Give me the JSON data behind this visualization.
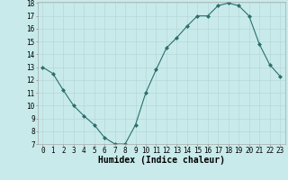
{
  "x": [
    0,
    1,
    2,
    3,
    4,
    5,
    6,
    7,
    8,
    9,
    10,
    11,
    12,
    13,
    14,
    15,
    16,
    17,
    18,
    19,
    20,
    21,
    22,
    23
  ],
  "y": [
    13,
    12.5,
    11.2,
    10,
    9.2,
    8.5,
    7.5,
    7.0,
    7.0,
    8.5,
    11.0,
    12.8,
    14.5,
    15.3,
    16.2,
    17.0,
    17.0,
    17.8,
    18.0,
    17.8,
    17.0,
    14.8,
    13.2,
    12.3
  ],
  "xlabel": "Humidex (Indice chaleur)",
  "ylim": [
    7,
    18
  ],
  "xlim": [
    -0.5,
    23.5
  ],
  "yticks": [
    7,
    8,
    9,
    10,
    11,
    12,
    13,
    14,
    15,
    16,
    17,
    18
  ],
  "xticks": [
    0,
    1,
    2,
    3,
    4,
    5,
    6,
    7,
    8,
    9,
    10,
    11,
    12,
    13,
    14,
    15,
    16,
    17,
    18,
    19,
    20,
    21,
    22,
    23
  ],
  "line_color": "#2d6e6e",
  "marker": "D",
  "marker_size": 2.0,
  "bg_color": "#c8eaea",
  "grid_color": "#b8d8d8",
  "tick_label_fontsize": 5.5,
  "xlabel_fontsize": 7.0
}
